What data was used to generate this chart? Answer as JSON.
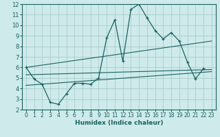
{
  "xlabel": "Humidex (Indice chaleur)",
  "bg_color": "#ceeaea",
  "grid_color": "#aacccc",
  "line_color": "#1a6060",
  "xlim": [
    -0.5,
    23.5
  ],
  "ylim": [
    2,
    12
  ],
  "xticks": [
    0,
    1,
    2,
    3,
    4,
    5,
    6,
    7,
    8,
    9,
    10,
    11,
    12,
    13,
    14,
    15,
    16,
    17,
    18,
    19,
    20,
    21,
    22,
    23
  ],
  "yticks": [
    2,
    3,
    4,
    5,
    6,
    7,
    8,
    9,
    10,
    11,
    12
  ],
  "line1_x": [
    0,
    1,
    2,
    3,
    4,
    5,
    6,
    7,
    8,
    9,
    10,
    11,
    12,
    13,
    14,
    15,
    16,
    17,
    18,
    19,
    20,
    21,
    22
  ],
  "line1_y": [
    6.0,
    4.9,
    4.4,
    2.7,
    2.5,
    3.5,
    4.5,
    4.5,
    4.4,
    5.0,
    8.8,
    10.5,
    6.6,
    11.5,
    12.0,
    10.7,
    9.5,
    8.7,
    9.3,
    8.5,
    6.5,
    4.9,
    5.9
  ],
  "line2_x": [
    0,
    23
  ],
  "line2_y": [
    6.0,
    8.5
  ],
  "line3_x": [
    0,
    23
  ],
  "line3_y": [
    5.3,
    5.8
  ],
  "line4_x": [
    0,
    23
  ],
  "line4_y": [
    4.3,
    5.6
  ]
}
